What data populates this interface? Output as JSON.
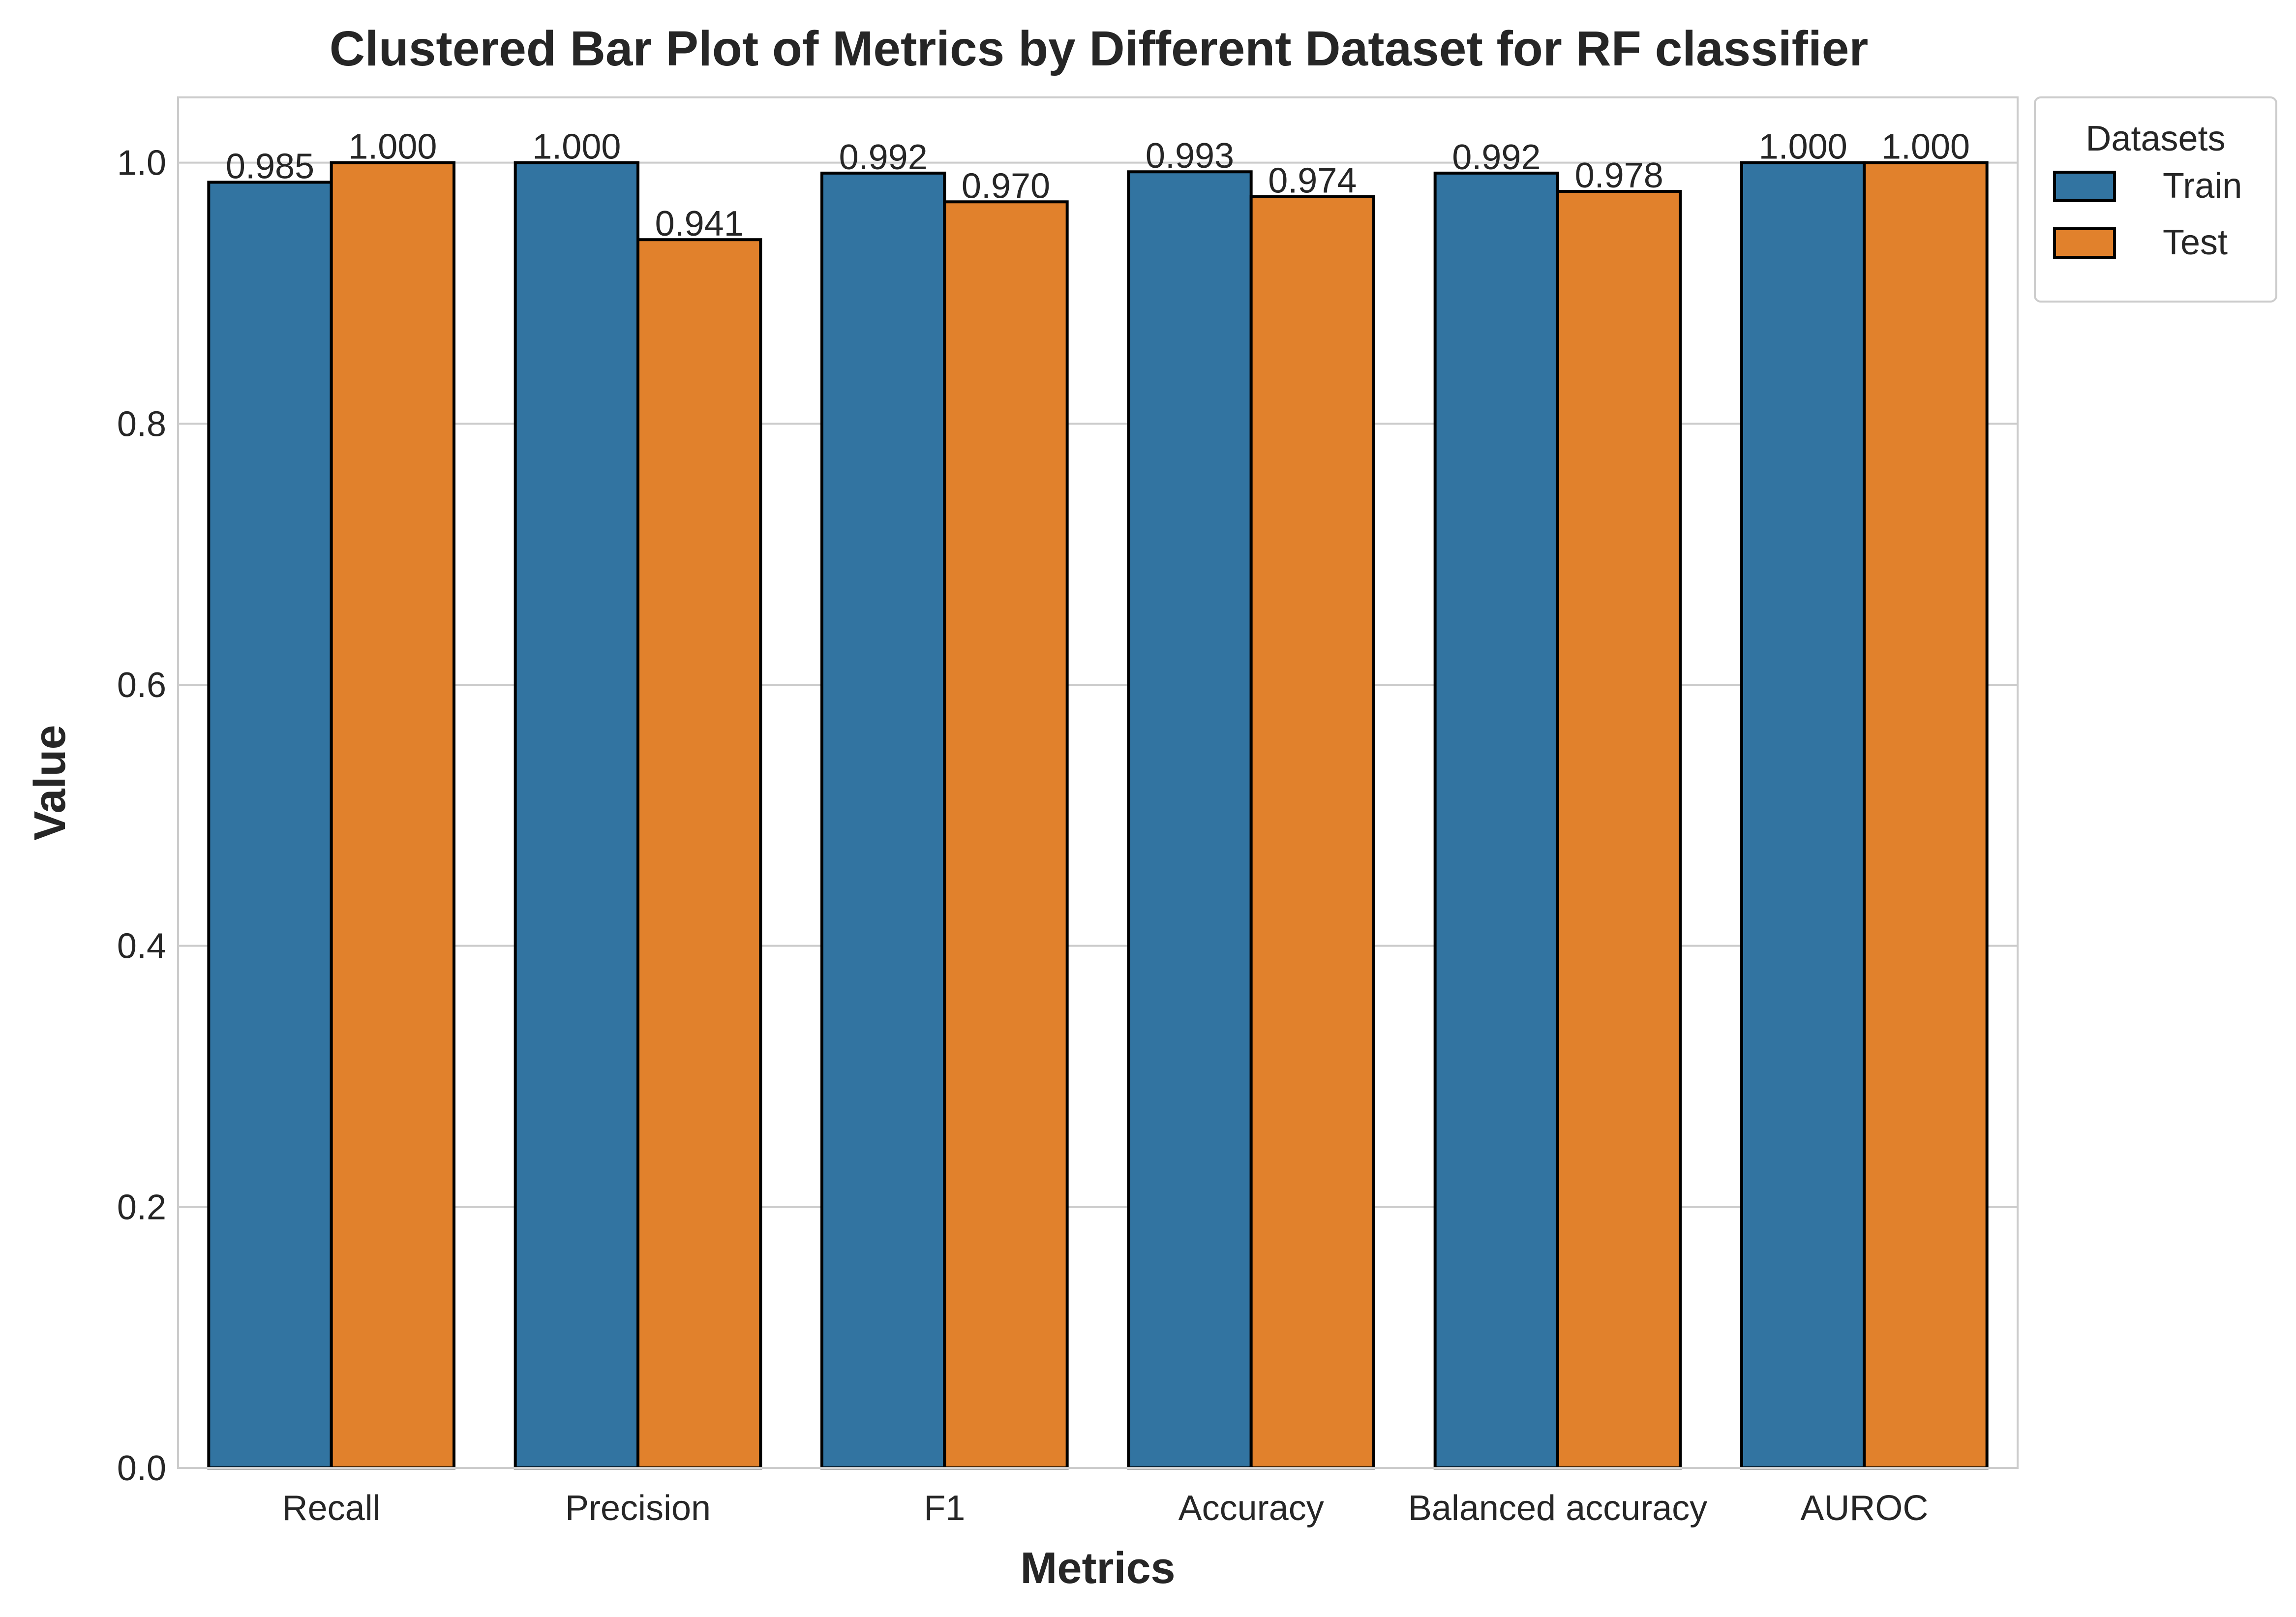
{
  "chart_data": {
    "type": "bar",
    "title": "Clustered Bar Plot of Metrics by Different Dataset for RF classifier",
    "xlabel": "Metrics",
    "ylabel": "Value",
    "categories": [
      "Recall",
      "Precision",
      "F1",
      "Accuracy",
      "Balanced accuracy",
      "AUROC"
    ],
    "series": [
      {
        "name": "Train",
        "color": "#3274a1",
        "values": [
          0.985,
          1.0,
          0.992,
          0.993,
          0.992,
          1.0
        ],
        "labels": [
          "0.985",
          "1.000",
          "0.992",
          "0.993",
          "0.992",
          "1.000"
        ]
      },
      {
        "name": "Test",
        "color": "#e1812c",
        "values": [
          1.0,
          0.941,
          0.97,
          0.974,
          0.978,
          1.0
        ],
        "labels": [
          "1.000",
          "0.941",
          "0.970",
          "0.974",
          "0.978",
          "1.000"
        ]
      }
    ],
    "ylim": [
      0,
      1.05
    ],
    "yticks": [
      0.0,
      0.2,
      0.4,
      0.6,
      0.8,
      1.0
    ],
    "ytick_labels": [
      "0.0",
      "0.2",
      "0.4",
      "0.6",
      "0.8",
      "1.0"
    ],
    "grid": "horizontal",
    "legend": {
      "title": "Datasets",
      "placement": "outside-top-right"
    }
  }
}
